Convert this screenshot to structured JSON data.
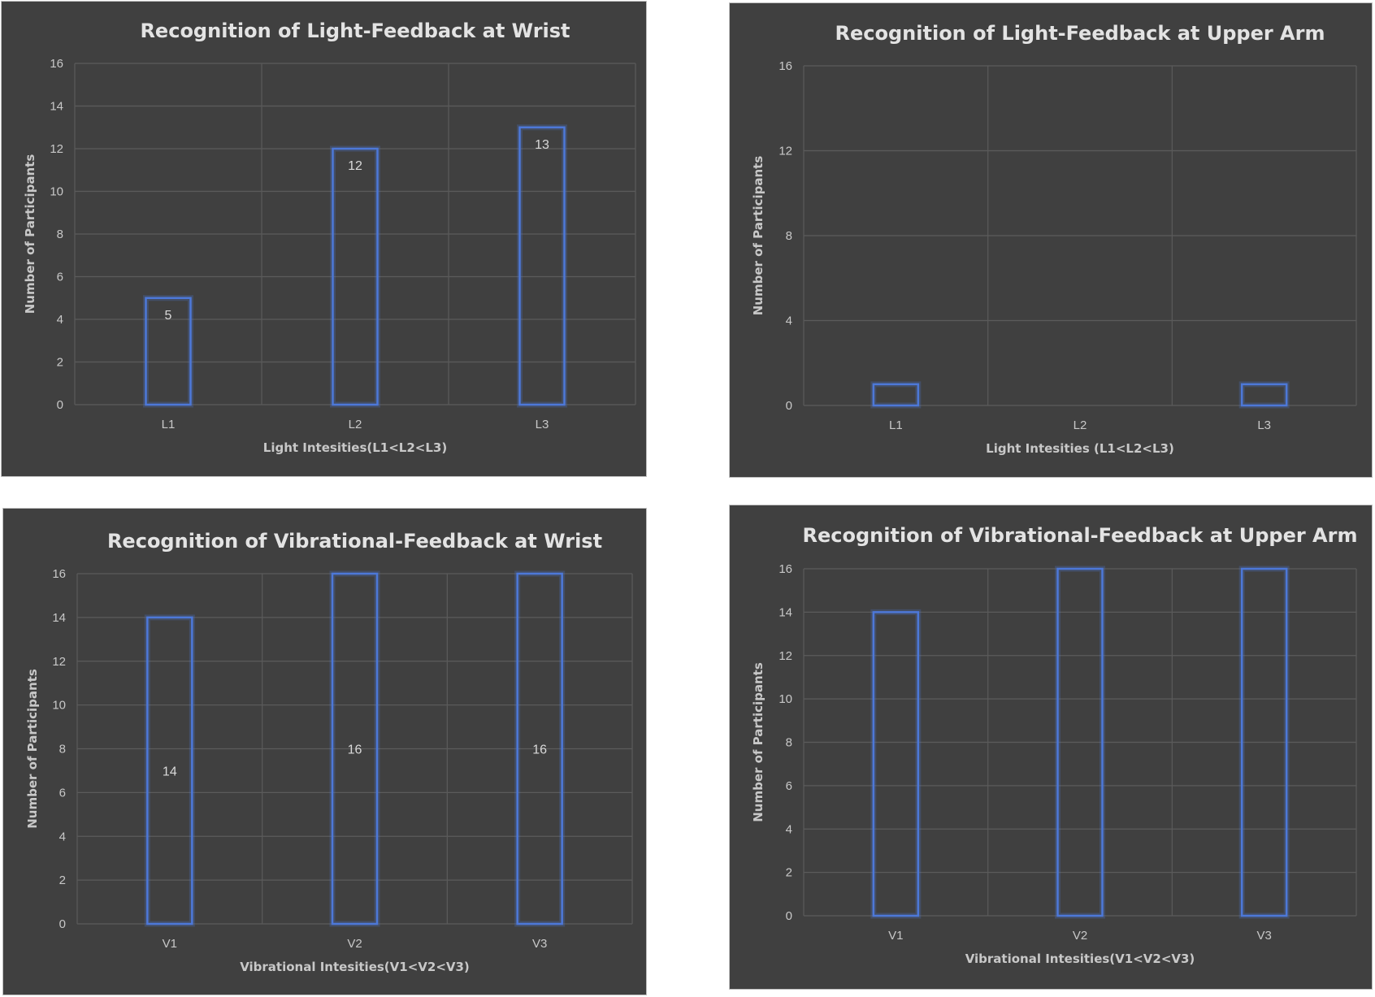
{
  "chart_data": [
    {
      "type": "bar",
      "title": "Recognition of Light-Feedback at Wrist",
      "xlabel": "Light Intesities(L1<L2<L3)",
      "ylabel": "Number of Participants",
      "categories": [
        "L1",
        "L2",
        "L3"
      ],
      "values": [
        5,
        12,
        13
      ],
      "data_labels": [
        "5",
        "12",
        "13"
      ],
      "ylim": [
        0,
        16
      ],
      "yticks": [
        0,
        2,
        4,
        6,
        8,
        10,
        12,
        14,
        16
      ],
      "grid": true,
      "bar_style": "outline",
      "bar_color": "#4d78d8"
    },
    {
      "type": "bar",
      "title": "Recognition of Light-Feedback at Upper Arm",
      "xlabel": "Light Intesities (L1<L2<L3)",
      "ylabel": "Number of Participants",
      "categories": [
        "L1",
        "L2",
        "L3"
      ],
      "values": [
        1,
        0,
        1
      ],
      "data_labels": [],
      "ylim": [
        0,
        16
      ],
      "yticks": [
        0,
        4,
        8,
        12,
        16
      ],
      "grid": true,
      "bar_style": "outline",
      "bar_color": "#4d78d8"
    },
    {
      "type": "bar",
      "title": "Recognition of Vibrational-Feedback at Wrist",
      "xlabel": "Vibrational Intesities(V1<V2<V3)",
      "ylabel": "Number of Participants",
      "categories": [
        "V1",
        "V2",
        "V3"
      ],
      "values": [
        14,
        16,
        16
      ],
      "data_labels": [
        "14",
        "16",
        "16"
      ],
      "ylim": [
        0,
        16
      ],
      "yticks": [
        0,
        2,
        4,
        6,
        8,
        10,
        12,
        14,
        16
      ],
      "grid": true,
      "bar_style": "outline",
      "bar_color": "#4d78d8"
    },
    {
      "type": "bar",
      "title": "Recognition of Vibrational-Feedback at Upper Arm",
      "xlabel": "Vibrational Intesities(V1<V2<V3)",
      "ylabel": "Number of Participants",
      "categories": [
        "V1",
        "V2",
        "V3"
      ],
      "values": [
        14,
        16,
        16
      ],
      "data_labels": [],
      "ylim": [
        0,
        16
      ],
      "yticks": [
        0,
        2,
        4,
        6,
        8,
        10,
        12,
        14,
        16
      ],
      "grid": true,
      "bar_style": "outline",
      "bar_color": "#4d78d8"
    }
  ]
}
